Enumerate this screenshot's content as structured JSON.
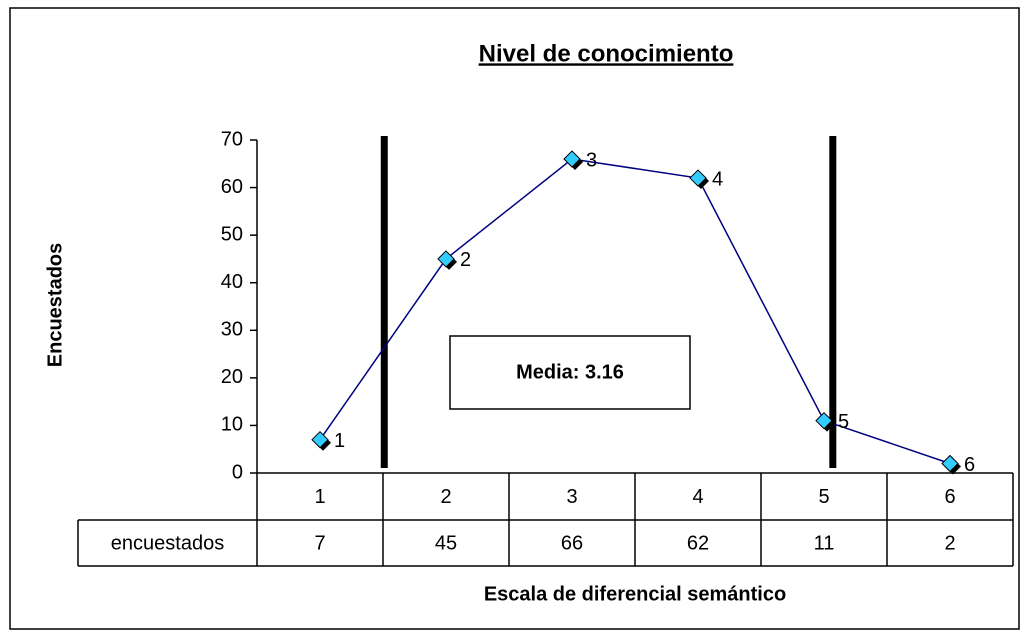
{
  "chart_data": {
    "type": "line",
    "title": "Nivel de conocimiento",
    "y_label": "Encuestados",
    "x_label": "Escala de diferencial semántico",
    "annotation": "Media: 3.16",
    "categories": [
      "1",
      "2",
      "3",
      "4",
      "5",
      "6"
    ],
    "series": [
      {
        "name": "encuestados",
        "color": "#000080",
        "marker_color": "#33ccff",
        "values": [
          7,
          45,
          66,
          62,
          11,
          2
        ]
      }
    ],
    "ylim": [
      0,
      70
    ],
    "yticks": [
      0,
      10,
      20,
      30,
      40,
      50,
      60,
      70
    ],
    "vlines": [
      1.51,
      5.07
    ],
    "data_table": true
  }
}
